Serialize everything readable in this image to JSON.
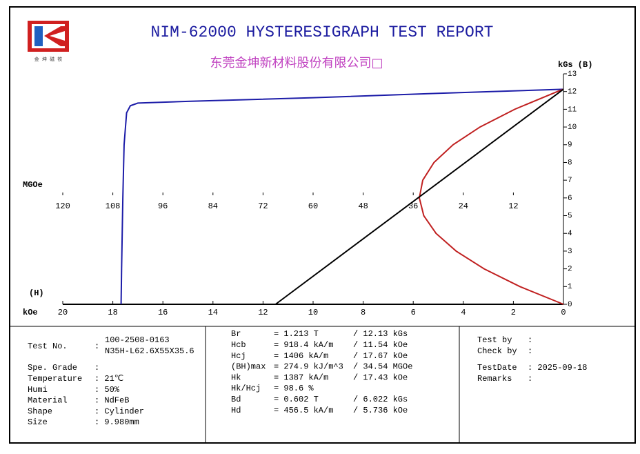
{
  "header": {
    "title": "NIM-62000 HYSTERESIGRAPH TEST REPORT",
    "subtitle": "东莞金坤新材料股份有限公司□",
    "logo_text": "金 坤 磁 铁"
  },
  "chart_data": {
    "type": "line",
    "x_label": "kOe",
    "x_label2": "(H)",
    "y_label": "kGs (B)",
    "x2_label": "MGOe",
    "xlim": [
      20,
      0
    ],
    "xticks": [
      20,
      18,
      16,
      14,
      12,
      10,
      8,
      6,
      4,
      2,
      0
    ],
    "x2lim": [
      120,
      0
    ],
    "x2ticks": [
      120,
      108,
      96,
      84,
      72,
      60,
      48,
      36,
      24,
      12
    ],
    "ylim": [
      0,
      13
    ],
    "yticks": [
      0,
      1,
      2,
      3,
      4,
      5,
      6,
      7,
      8,
      9,
      10,
      11,
      12,
      13
    ],
    "series": [
      {
        "name": "B-H",
        "color": "#1c1ca8",
        "x": [
          0,
          5,
          10,
          15,
          17,
          17.3,
          17.45,
          17.55,
          17.6,
          17.65,
          17.67
        ],
        "values": [
          12.13,
          11.9,
          11.65,
          11.45,
          11.35,
          11.2,
          10.8,
          9,
          6,
          2,
          0
        ]
      },
      {
        "name": "BH",
        "color": "#c02020",
        "axis": "x2",
        "x": [
          0,
          10.45,
          19.02,
          25.72,
          30.54,
          33.48,
          34.54,
          33.72,
          31.03,
          26.45,
          20.0,
          11.67,
          1.46,
          0
        ],
        "values": [
          0,
          1,
          2,
          3,
          4,
          5,
          6,
          7,
          8,
          9,
          10,
          11,
          12,
          12.13
        ]
      },
      {
        "name": "Load line",
        "color": "#000000",
        "x": [
          0,
          11.5
        ],
        "values": [
          12.13,
          0
        ]
      }
    ]
  },
  "report": {
    "test_no": {
      "label": "Test No.",
      "sep": ":",
      "lines": [
        "100-2508-0163",
        "N35H-L62.6X55X35.6"
      ]
    },
    "left": [
      [
        "Spe. Grade",
        ":"
      ],
      [
        "Temperature",
        ": 21℃"
      ],
      [
        "Humi",
        ": 50%"
      ],
      [
        "Material",
        ": NdFeB"
      ],
      [
        "Shape",
        ": Cylinder"
      ],
      [
        "Size",
        ": 9.980mm"
      ]
    ],
    "middle": [
      [
        "Br",
        "= 1.213 T",
        "/ 12.13 kGs"
      ],
      [
        "Hcb",
        "= 918.4 kA/m",
        "/ 11.54 kOe"
      ],
      [
        "Hcj",
        "= 1406 kA/m",
        "/ 17.67 kOe"
      ],
      [
        "(BH)max",
        "= 274.9 kJ/m^3",
        "/ 34.54 MGOe"
      ],
      [
        "Hk",
        "= 1387 kA/m",
        "/ 17.43 kOe"
      ],
      [
        "Hk/Hcj",
        "= 98.6 %",
        ""
      ],
      [
        "Bd",
        "= 0.602 T",
        "/ 6.022 kGs"
      ],
      [
        "Hd",
        "= 456.5 kA/m",
        "/ 5.736 kOe"
      ]
    ],
    "right": [
      [
        "Test by",
        ":"
      ],
      [
        "Check by",
        ":"
      ],
      [
        "TestDate",
        ": 2025-09-18"
      ],
      [
        "Remarks",
        ":"
      ]
    ]
  }
}
